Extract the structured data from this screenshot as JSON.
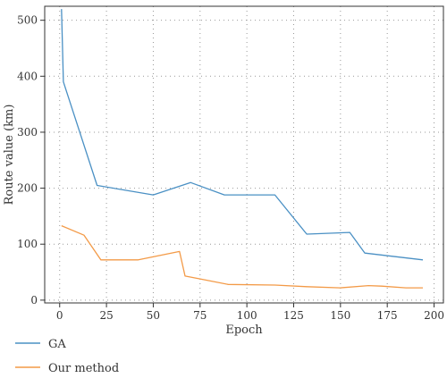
{
  "chart_data": {
    "type": "line",
    "title": "",
    "xlabel": "Epoch",
    "ylabel": "Route value (km)",
    "xlim": [
      -8,
      205
    ],
    "ylim": [
      -5,
      525
    ],
    "xticks": [
      0,
      25,
      50,
      75,
      100,
      125,
      150,
      175,
      200
    ],
    "yticks": [
      0,
      100,
      200,
      300,
      400,
      500
    ],
    "grid": true,
    "legend_position": "bottom-left, below plot",
    "series": [
      {
        "name": "GA",
        "color": "#4a90c4",
        "x": [
          1,
          2,
          20,
          50,
          70,
          88,
          115,
          132,
          155,
          163,
          194
        ],
        "y": [
          520,
          390,
          205,
          188,
          210,
          188,
          188,
          118,
          121,
          84,
          72
        ]
      },
      {
        "name": "Our method",
        "color": "#f39a47",
        "x": [
          1,
          13,
          22,
          42,
          64,
          67,
          75,
          90,
          115,
          132,
          150,
          165,
          172,
          185,
          194
        ],
        "y": [
          133,
          116,
          72,
          72,
          87,
          43,
          38,
          28,
          27,
          24,
          22,
          26,
          25,
          22,
          22
        ]
      }
    ]
  }
}
